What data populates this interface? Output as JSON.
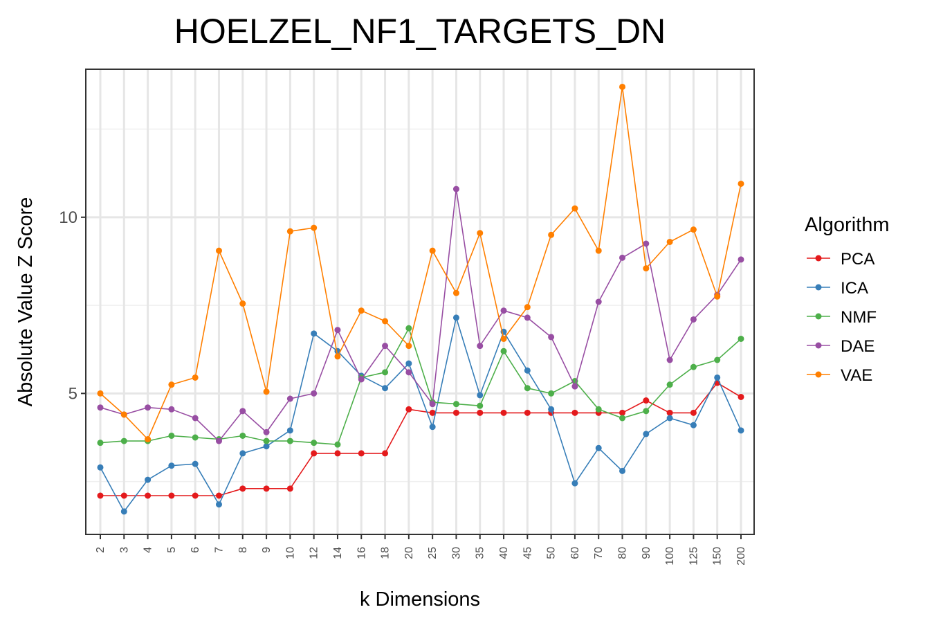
{
  "chart_data": {
    "type": "line",
    "title": "HOELZEL_NF1_TARGETS_DN",
    "xlabel": "k Dimensions",
    "ylabel": "Absolute Value Z Score",
    "categories": [
      "2",
      "3",
      "4",
      "5",
      "6",
      "7",
      "8",
      "9",
      "10",
      "12",
      "14",
      "16",
      "18",
      "20",
      "25",
      "30",
      "35",
      "40",
      "45",
      "50",
      "60",
      "70",
      "80",
      "90",
      "100",
      "125",
      "150",
      "200"
    ],
    "ylim": [
      1.0,
      14.2
    ],
    "yticks": [
      5,
      10
    ],
    "grid": true,
    "legend": {
      "title": "Algorithm",
      "position": "right"
    },
    "series": [
      {
        "name": "PCA",
        "color": "#E41A1C",
        "values": [
          2.1,
          2.1,
          2.1,
          2.1,
          2.1,
          2.1,
          2.3,
          2.3,
          2.3,
          3.3,
          3.3,
          3.3,
          3.3,
          4.55,
          4.45,
          4.45,
          4.45,
          4.45,
          4.45,
          4.45,
          4.45,
          4.45,
          4.45,
          4.8,
          4.45,
          4.45,
          5.3,
          4.9
        ]
      },
      {
        "name": "ICA",
        "color": "#377EB8",
        "values": [
          2.9,
          1.65,
          2.55,
          2.95,
          3.0,
          1.85,
          3.3,
          3.5,
          3.95,
          6.7,
          6.2,
          5.5,
          5.15,
          5.85,
          4.05,
          7.15,
          4.95,
          6.75,
          5.65,
          4.55,
          2.45,
          3.45,
          2.8,
          3.85,
          4.3,
          4.1,
          5.45,
          3.95
        ]
      },
      {
        "name": "NMF",
        "color": "#4DAF4A",
        "values": [
          3.6,
          3.65,
          3.65,
          3.8,
          3.75,
          3.7,
          3.8,
          3.65,
          3.65,
          3.6,
          3.55,
          5.45,
          5.6,
          6.85,
          4.75,
          4.7,
          4.65,
          6.2,
          5.15,
          5.0,
          5.35,
          4.55,
          4.3,
          4.5,
          5.25,
          5.75,
          5.95,
          6.55
        ]
      },
      {
        "name": "DAE",
        "color": "#984EA3",
        "values": [
          4.6,
          4.4,
          4.6,
          4.55,
          4.3,
          3.65,
          4.5,
          3.9,
          4.85,
          5.0,
          6.8,
          5.4,
          6.35,
          5.6,
          4.7,
          10.8,
          6.35,
          7.35,
          7.15,
          6.6,
          5.2,
          7.6,
          8.85,
          9.25,
          5.95,
          7.1,
          7.8,
          8.8
        ]
      },
      {
        "name": "VAE",
        "color": "#FF7F00",
        "values": [
          5.0,
          4.4,
          3.7,
          5.25,
          5.45,
          9.05,
          7.55,
          5.05,
          9.6,
          9.7,
          6.05,
          7.35,
          7.05,
          6.35,
          9.05,
          7.85,
          9.55,
          6.55,
          7.45,
          9.5,
          10.25,
          9.05,
          13.7,
          8.55,
          9.3,
          9.65,
          7.75,
          10.95
        ]
      }
    ]
  }
}
